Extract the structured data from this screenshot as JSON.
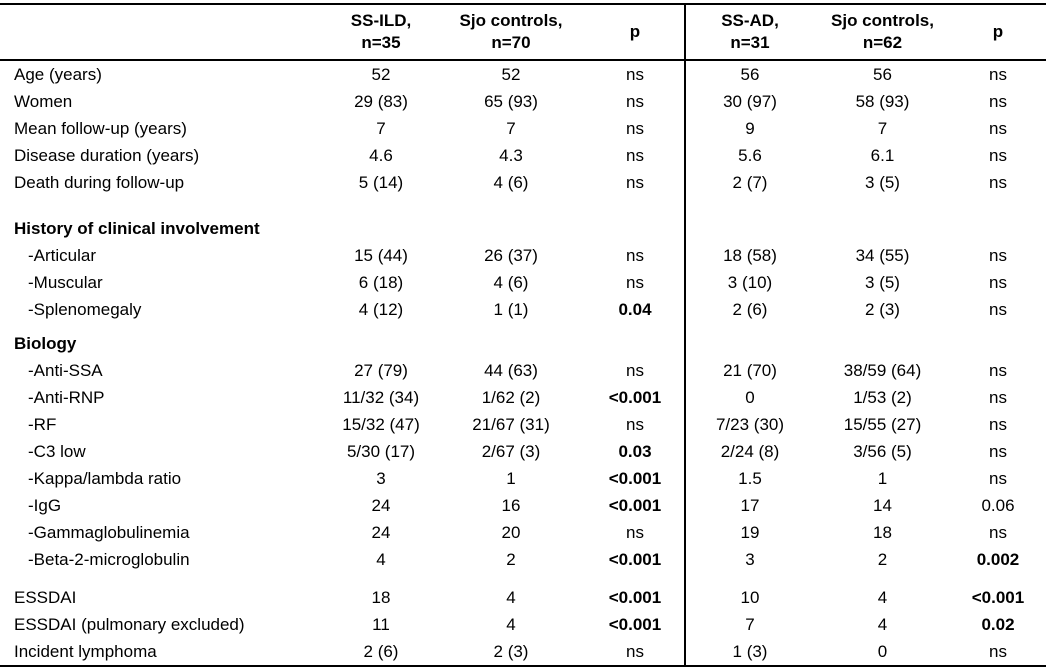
{
  "colors": {
    "text": "#000000",
    "background": "#ffffff",
    "rule": "#000000"
  },
  "table": {
    "header": {
      "cells": [
        {
          "line1": "SS-ILD,",
          "line2": "n=35"
        },
        {
          "line1": "Sjo controls,",
          "line2": "n=70"
        },
        {
          "line1": "p",
          "line2": ""
        },
        {
          "line1": "SS-AD,",
          "line2": "n=31"
        },
        {
          "line1": "Sjo controls,",
          "line2": "n=62"
        },
        {
          "line1": "p",
          "line2": ""
        }
      ]
    },
    "rows": [
      {
        "label": "Age (years)",
        "cells": [
          "52",
          "52",
          "ns",
          "56",
          "56",
          "ns"
        ]
      },
      {
        "label": "Women",
        "cells": [
          "29 (83)",
          "65 (93)",
          "ns",
          "30 (97)",
          "58 (93)",
          "ns"
        ]
      },
      {
        "label": "Mean follow-up (years)",
        "cells": [
          "7",
          "7",
          "ns",
          "9",
          "7",
          "ns"
        ]
      },
      {
        "label": "Disease duration (years)",
        "cells": [
          "4.6",
          "4.3",
          "ns",
          "5.6",
          "6.1",
          "ns"
        ]
      },
      {
        "label": "Death during follow-up",
        "cells": [
          "5 (14)",
          "4 (6)",
          "ns",
          "2 (7)",
          "3 (5)",
          "ns"
        ]
      },
      {
        "label": "History of clinical involvement",
        "section": true,
        "gap_before": 19,
        "cells": [
          "",
          "",
          "",
          "",
          "",
          ""
        ]
      },
      {
        "label": "-Articular",
        "indent": true,
        "cells": [
          "15 (44)",
          "26 (37)",
          "ns",
          "18 (58)",
          "34 (55)",
          "ns"
        ]
      },
      {
        "label": "-Muscular",
        "indent": true,
        "cells": [
          "6 (18)",
          "4 (6)",
          "ns",
          "3 (10)",
          "3 (5)",
          "ns"
        ]
      },
      {
        "label": "-Splenomegaly",
        "indent": true,
        "cells": [
          "4 (12)",
          "1 (1)",
          "0.04",
          "2 (6)",
          "2 (3)",
          "ns"
        ],
        "bold_cols": [
          2
        ]
      },
      {
        "label": "Biology",
        "section": true,
        "gap_before": 7,
        "cells": [
          "",
          "",
          "",
          "",
          "",
          ""
        ]
      },
      {
        "label": "-Anti-SSA",
        "indent": true,
        "cells": [
          "27 (79)",
          "44 (63)",
          "ns",
          "21 (70)",
          "38/59 (64)",
          "ns"
        ]
      },
      {
        "label": "-Anti-RNP",
        "indent": true,
        "cells": [
          "11/32 (34)",
          "1/62 (2)",
          "<0.001",
          "0",
          "1/53 (2)",
          "ns"
        ],
        "bold_cols": [
          2
        ]
      },
      {
        "label": "-RF",
        "indent": true,
        "cells": [
          "15/32 (47)",
          "21/67 (31)",
          "ns",
          "7/23 (30)",
          "15/55 (27)",
          "ns"
        ]
      },
      {
        "label": "-C3 low",
        "indent": true,
        "cells": [
          "5/30 (17)",
          "2/67 (3)",
          "0.03",
          "2/24 (8)",
          "3/56 (5)",
          "ns"
        ],
        "bold_cols": [
          2
        ]
      },
      {
        "label": "-Kappa/lambda ratio",
        "indent": true,
        "cells": [
          "3",
          "1",
          "<0.001",
          "1.5",
          "1",
          "ns"
        ],
        "bold_cols": [
          2
        ]
      },
      {
        "label": "-IgG",
        "indent": true,
        "cells": [
          "24",
          "16",
          "<0.001",
          "17",
          "14",
          "0.06"
        ],
        "bold_cols": [
          2
        ]
      },
      {
        "label": "-Gammaglobulinemia",
        "indent": true,
        "cells": [
          "24",
          "20",
          "ns",
          "19",
          "18",
          "ns"
        ]
      },
      {
        "label": "-Beta-2-microglobulin",
        "indent": true,
        "cells": [
          "4",
          "2",
          "<0.001",
          "3",
          "2",
          "0.002"
        ],
        "bold_cols": [
          2,
          5
        ]
      },
      {
        "label": "ESSDAI",
        "gap_before": 11,
        "cells": [
          "18",
          "4",
          "<0.001",
          "10",
          "4",
          "<0.001"
        ],
        "bold_cols": [
          2,
          5
        ]
      },
      {
        "label": "ESSDAI (pulmonary excluded)",
        "cells": [
          "11",
          "4",
          "<0.001",
          "7",
          "4",
          "0.02"
        ],
        "bold_cols": [
          2,
          5
        ]
      },
      {
        "label": "Incident lymphoma",
        "cells": [
          "2 (6)",
          "2 (3)",
          "ns",
          "1 (3)",
          "0",
          "ns"
        ]
      }
    ]
  }
}
